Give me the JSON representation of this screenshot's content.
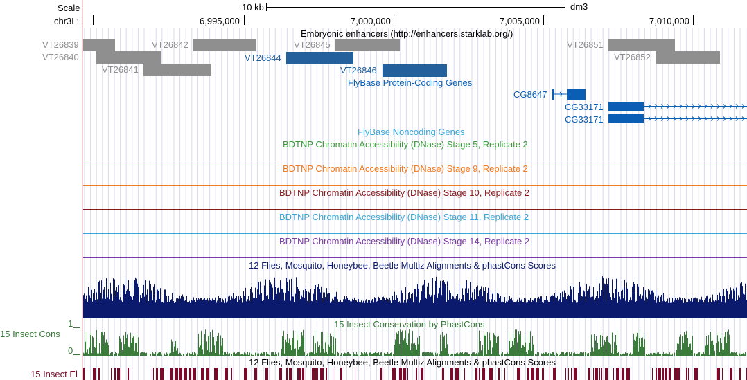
{
  "header": {
    "scale_label": "Scale",
    "scale_size": "10 kb",
    "assembly": "dm3",
    "chrom_label": "chr3L:",
    "positions": [
      "6,995,000",
      "7,000,000",
      "7,005,000",
      "7,010,000"
    ]
  },
  "tracks": {
    "enhancers": {
      "title": "Embryonic enhancers (http://enhancers.starklab.org/)",
      "items": [
        "VT26839",
        "VT26840",
        "VT26841",
        "VT26842",
        "VT26844",
        "VT26845",
        "VT26846",
        "VT26851",
        "VT26852"
      ]
    },
    "flybase_coding": {
      "title": "FlyBase Protein-Coding Genes",
      "genes": [
        "CG8647",
        "CG33171",
        "CG33171"
      ]
    },
    "flybase_noncoding": {
      "title": "FlyBase Noncoding Genes"
    },
    "dnase": [
      {
        "title": "BDTNP Chromatin Accessibility (DNase) Stage 5, Replicate 2",
        "color": "#3a9a3a"
      },
      {
        "title": "BDTNP Chromatin Accessibility (DNase) Stage 9, Replicate 2",
        "color": "#f07a1e"
      },
      {
        "title": "BDTNP Chromatin Accessibility (DNase) Stage 10, Replicate 2",
        "color": "#8a1a1a"
      },
      {
        "title": "BDTNP Chromatin Accessibility (DNase) Stage 11, Replicate 2",
        "color": "#3aa6d6"
      },
      {
        "title": "BDTNP Chromatin Accessibility (DNase) Stage 14, Replicate 2",
        "color": "#7a3aa6"
      }
    ],
    "multiz": {
      "title": "12 Flies, Mosquito, Honeybee, Beetle Multiz Alignments & phastCons Scores",
      "color": "#0c1a6e"
    },
    "cons": {
      "title": "15 Insect Conservation by PhastCons",
      "side_label": "15 Insect Cons",
      "y_max": "1",
      "y_min": "0",
      "color": "#3a7a3a"
    },
    "elements": {
      "title": "12 Flies, Mosquito, Honeybee, Beetle Multiz Alignments & phastCons Scores",
      "side_label": "15 Insect El",
      "color": "#7a0a2a"
    }
  },
  "colors": {
    "enhancer_gray": "#8f8f8f",
    "enhancer_blue": "#24619c",
    "gene_blue": "#0a5fb4",
    "grid": "#d8d8f0"
  }
}
